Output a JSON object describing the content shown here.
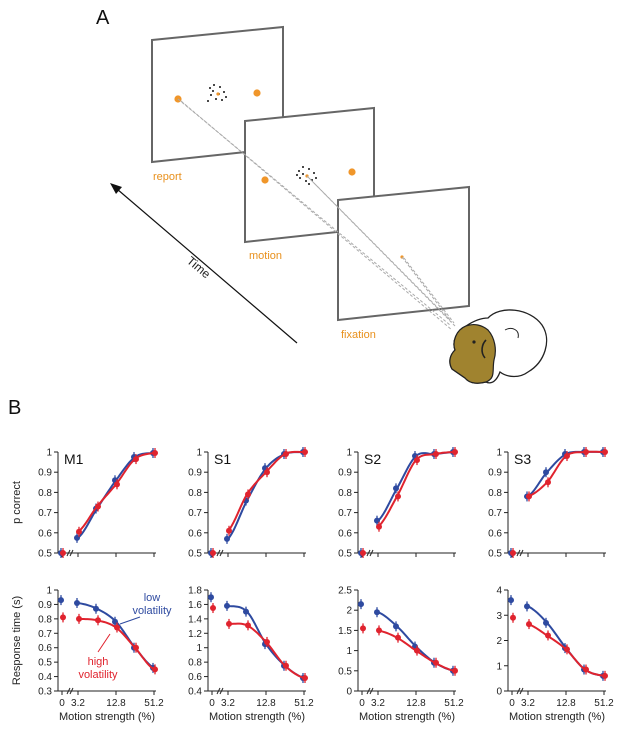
{
  "figure": {
    "panel_a_label": "A",
    "panel_b_label": "B",
    "stages": [
      "report",
      "motion",
      "fixation"
    ],
    "time_label": "Time",
    "colors": {
      "low": "#2e4aa0",
      "high": "#e0232e",
      "target": "#f0962a",
      "frame": "#666666"
    },
    "legend": {
      "low_line1": "low",
      "low_line2": "volatility",
      "high_line1": "high",
      "high_line2": "volatility"
    }
  },
  "chart_data": [
    {
      "type": "line",
      "title": "M1",
      "ylabel": "p correct",
      "xlabel": "",
      "x_ticks": [
        "0",
        "3.2",
        "12.8",
        "51.2"
      ],
      "y_ticks": [
        "0.5",
        "0.6",
        "0.7",
        "0.8",
        "0.9",
        "1"
      ],
      "ylim": [
        0.5,
        1.0
      ],
      "series": [
        {
          "name": "low volatility",
          "x": [
            0,
            3.2,
            6.4,
            12.8,
            25.6,
            51.2
          ],
          "y": [
            0.5,
            0.575,
            0.72,
            0.86,
            0.975,
            0.995
          ]
        },
        {
          "name": "high volatility",
          "x": [
            0,
            3.2,
            6.4,
            12.8,
            25.6,
            51.2
          ],
          "y": [
            0.5,
            0.605,
            0.73,
            0.84,
            0.965,
            0.995
          ]
        }
      ]
    },
    {
      "type": "line",
      "title": "S1",
      "ylabel": "",
      "xlabel": "",
      "x_ticks": [
        "0",
        "3.2",
        "12.8",
        "51.2"
      ],
      "y_ticks": [
        "0.5",
        "0.6",
        "0.7",
        "0.8",
        "0.9",
        "1"
      ],
      "ylim": [
        0.5,
        1.0
      ],
      "series": [
        {
          "name": "low volatility",
          "x": [
            0,
            3.2,
            6.4,
            12.8,
            25.6,
            51.2
          ],
          "y": [
            0.5,
            0.57,
            0.76,
            0.92,
            0.99,
            1.0
          ]
        },
        {
          "name": "high volatility",
          "x": [
            0,
            3.2,
            6.4,
            12.8,
            25.6,
            51.2
          ],
          "y": [
            0.5,
            0.61,
            0.79,
            0.9,
            0.99,
            1.0
          ]
        }
      ]
    },
    {
      "type": "line",
      "title": "S2",
      "ylabel": "",
      "xlabel": "",
      "x_ticks": [
        "0",
        "3.2",
        "12.8",
        "51.2"
      ],
      "y_ticks": [
        "0.5",
        "0.6",
        "0.7",
        "0.8",
        "0.9",
        "1"
      ],
      "ylim": [
        0.5,
        1.0
      ],
      "series": [
        {
          "name": "low volatility",
          "x": [
            0,
            3.2,
            6.4,
            12.8,
            25.6,
            51.2
          ],
          "y": [
            0.5,
            0.66,
            0.82,
            0.98,
            0.99,
            1.0
          ]
        },
        {
          "name": "high volatility",
          "x": [
            0,
            3.2,
            6.4,
            12.8,
            25.6,
            51.2
          ],
          "y": [
            0.5,
            0.63,
            0.78,
            0.96,
            0.99,
            1.0
          ]
        }
      ]
    },
    {
      "type": "line",
      "title": "S3",
      "ylabel": "",
      "xlabel": "",
      "x_ticks": [
        "0",
        "3.2",
        "12.8",
        "51.2"
      ],
      "y_ticks": [
        "0.5",
        "0.6",
        "0.7",
        "0.8",
        "0.9",
        "1"
      ],
      "ylim": [
        0.5,
        1.0
      ],
      "series": [
        {
          "name": "low volatility",
          "x": [
            0,
            3.2,
            6.4,
            12.8,
            25.6,
            51.2
          ],
          "y": [
            0.5,
            0.78,
            0.9,
            0.99,
            1.0,
            1.0
          ]
        },
        {
          "name": "high volatility",
          "x": [
            0,
            3.2,
            6.4,
            12.8,
            25.6,
            51.2
          ],
          "y": [
            0.5,
            0.78,
            0.85,
            0.98,
            1.0,
            1.0
          ]
        }
      ]
    },
    {
      "type": "line",
      "title": "",
      "ylabel": "Response time (s)",
      "xlabel": "Motion strength (%)",
      "x_ticks": [
        "0",
        "3.2",
        "12.8",
        "51.2"
      ],
      "y_ticks": [
        "0.3",
        "0.4",
        "0.5",
        "0.6",
        "0.7",
        "0.8",
        "0.9",
        "1"
      ],
      "ylim": [
        0.3,
        1.0
      ],
      "series": [
        {
          "name": "low volatility",
          "x": [
            0,
            3.2,
            6.4,
            12.8,
            25.6,
            51.2
          ],
          "y": [
            0.93,
            0.91,
            0.87,
            0.78,
            0.6,
            0.46
          ]
        },
        {
          "name": "high volatility",
          "x": [
            0,
            3.2,
            6.4,
            12.8,
            25.6,
            51.2
          ],
          "y": [
            0.81,
            0.8,
            0.79,
            0.74,
            0.6,
            0.45
          ]
        }
      ]
    },
    {
      "type": "line",
      "title": "",
      "ylabel": "",
      "xlabel": "Motion strength (%)",
      "x_ticks": [
        "0",
        "3.2",
        "12.8",
        "51.2"
      ],
      "y_ticks": [
        "0.4",
        "0.6",
        "0.8",
        "1",
        "1.2",
        "1.4",
        "1.6",
        "1.8"
      ],
      "ylim": [
        0.4,
        1.8
      ],
      "series": [
        {
          "name": "low volatility",
          "x": [
            0,
            3.2,
            6.4,
            12.8,
            25.6,
            51.2
          ],
          "y": [
            1.7,
            1.58,
            1.5,
            1.05,
            0.75,
            0.58
          ]
        },
        {
          "name": "high volatility",
          "x": [
            0,
            3.2,
            6.4,
            12.8,
            25.6,
            51.2
          ],
          "y": [
            1.55,
            1.33,
            1.31,
            1.08,
            0.75,
            0.58
          ]
        }
      ]
    },
    {
      "type": "line",
      "title": "",
      "ylabel": "",
      "xlabel": "Motion strength (%)",
      "x_ticks": [
        "0",
        "3.2",
        "12.8",
        "51.2"
      ],
      "y_ticks": [
        "0",
        "0.5",
        "1",
        "1.5",
        "2",
        "2.5"
      ],
      "ylim": [
        0,
        2.5
      ],
      "series": [
        {
          "name": "low volatility",
          "x": [
            0,
            3.2,
            6.4,
            12.8,
            25.6,
            51.2
          ],
          "y": [
            2.15,
            1.95,
            1.6,
            1.1,
            0.7,
            0.5
          ]
        },
        {
          "name": "high volatility",
          "x": [
            0,
            3.2,
            6.4,
            12.8,
            25.6,
            51.2
          ],
          "y": [
            1.55,
            1.5,
            1.32,
            1.0,
            0.7,
            0.5
          ]
        }
      ]
    },
    {
      "type": "line",
      "title": "",
      "ylabel": "",
      "xlabel": "Motion strength (%)",
      "x_ticks": [
        "0",
        "3.2",
        "12.8",
        "51.2"
      ],
      "y_ticks": [
        "0",
        "1",
        "2",
        "3",
        "4"
      ],
      "ylim": [
        0,
        4
      ],
      "series": [
        {
          "name": "low volatility",
          "x": [
            0,
            3.2,
            6.4,
            12.8,
            25.6,
            51.2
          ],
          "y": [
            3.6,
            3.35,
            2.7,
            1.7,
            0.85,
            0.6
          ]
        },
        {
          "name": "high volatility",
          "x": [
            0,
            3.2,
            6.4,
            12.8,
            25.6,
            51.2
          ],
          "y": [
            2.9,
            2.65,
            2.2,
            1.65,
            0.85,
            0.6
          ]
        }
      ]
    }
  ]
}
